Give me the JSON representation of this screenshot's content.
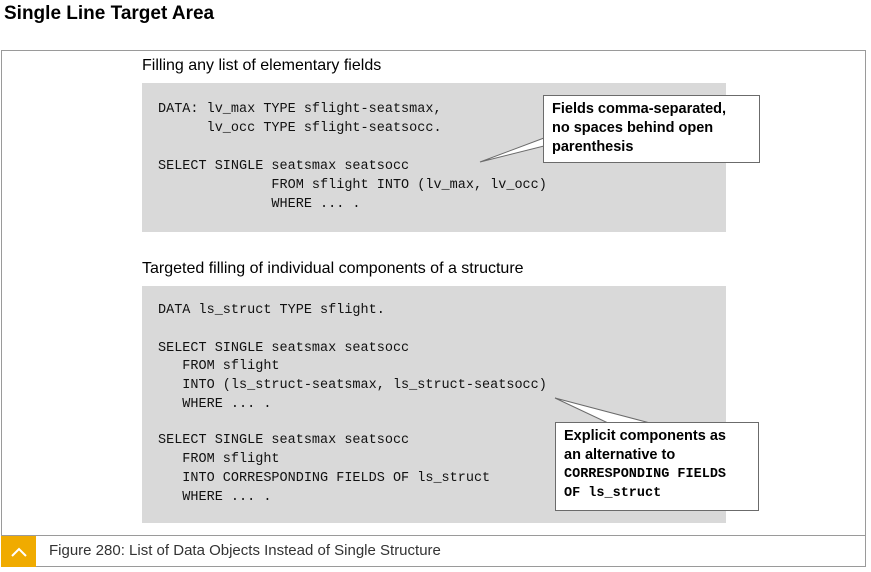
{
  "page": {
    "title": "Single Line Target Area"
  },
  "section1": {
    "heading": "Filling any list of elementary fields",
    "code": [
      "DATA: lv_max TYPE sflight-seatsmax,",
      "      lv_occ TYPE sflight-seatsocc.",
      "SELECT SINGLE seatsmax seatsocc",
      "              FROM sflight INTO (lv_max, lv_occ)",
      "              WHERE ... ."
    ],
    "callout": {
      "lines": [
        "Fields comma-separated,",
        "no spaces behind open",
        "parenthesis"
      ]
    }
  },
  "section2": {
    "heading": "Targeted filling of individual components of a structure",
    "code": [
      "DATA ls_struct TYPE sflight.",
      "SELECT SINGLE seatsmax seatsocc",
      "   FROM sflight",
      "   INTO (ls_struct-seatsmax, ls_struct-seatsocc)",
      "   WHERE ... .",
      "SELECT SINGLE seatsmax seatsocc",
      "   FROM sflight",
      "   INTO CORRESPONDING FIELDS OF ls_struct",
      "   WHERE ... ."
    ],
    "callout": {
      "lines": [
        "Explicit components as",
        "an alternative to"
      ],
      "code_lines": [
        "CORRESPONDING FIELDS",
        "OF ls_struct"
      ]
    }
  },
  "caption": {
    "text": "Figure 280: List of Data Objects Instead of Single Structure",
    "toggle_icon": "chevron-up-icon",
    "toggle_color": "#f0ab00"
  }
}
